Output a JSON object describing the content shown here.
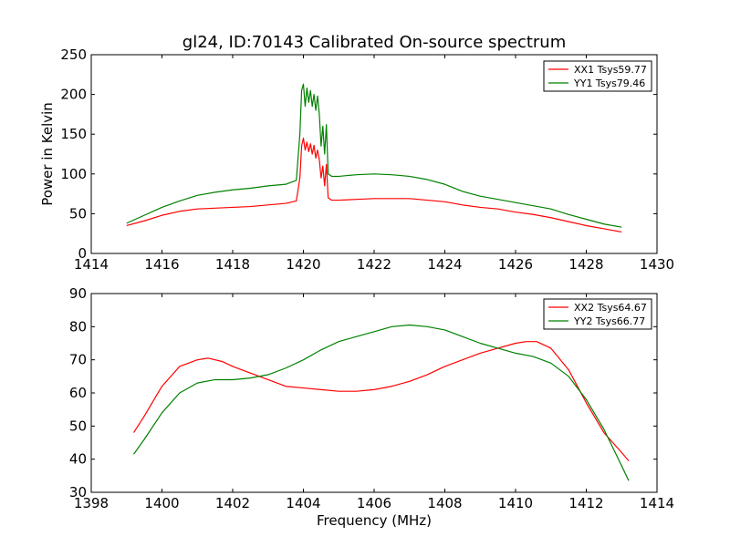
{
  "chart_data": [
    {
      "type": "line",
      "title": "gl24, ID:70143 Calibrated On-source spectrum",
      "ylabel": "Power in Kelvin",
      "xlabel": "",
      "xlim": [
        1414,
        1430
      ],
      "ylim": [
        0,
        250
      ],
      "xticks": [
        "1414",
        "1416",
        "1418",
        "1420",
        "1422",
        "1424",
        "1426",
        "1428",
        "1430"
      ],
      "yticks": [
        "0",
        "50",
        "100",
        "150",
        "200",
        "250"
      ],
      "grid": false,
      "legend": "top-right",
      "series": [
        {
          "name": "XX1 Tsys59.77",
          "color": "#ff0000",
          "x": [
            1415.0,
            1415.5,
            1416.0,
            1416.5,
            1417.0,
            1417.5,
            1418.0,
            1418.5,
            1419.0,
            1419.5,
            1419.8,
            1419.9,
            1419.95,
            1420.0,
            1420.05,
            1420.1,
            1420.15,
            1420.2,
            1420.25,
            1420.3,
            1420.35,
            1420.4,
            1420.45,
            1420.5,
            1420.55,
            1420.6,
            1420.65,
            1420.7,
            1420.8,
            1421.0,
            1421.5,
            1422.0,
            1422.5,
            1423.0,
            1423.5,
            1424.0,
            1424.5,
            1425.0,
            1425.5,
            1426.0,
            1426.5,
            1427.0,
            1427.5,
            1428.0,
            1428.5,
            1429.0
          ],
          "y": [
            35,
            41,
            48,
            53,
            56,
            57,
            58,
            59,
            61,
            63,
            66,
            95,
            135,
            145,
            130,
            140,
            128,
            138,
            125,
            136,
            120,
            130,
            118,
            95,
            110,
            85,
            112,
            70,
            67,
            67,
            68,
            69,
            69,
            69,
            67,
            65,
            61,
            58,
            56,
            52,
            49,
            45,
            40,
            35,
            31,
            27
          ]
        },
        {
          "name": "YY1 Tsys79.46",
          "color": "#008000",
          "x": [
            1415.0,
            1415.5,
            1416.0,
            1416.5,
            1417.0,
            1417.5,
            1418.0,
            1418.5,
            1419.0,
            1419.5,
            1419.8,
            1419.9,
            1419.95,
            1420.0,
            1420.05,
            1420.1,
            1420.15,
            1420.2,
            1420.25,
            1420.3,
            1420.35,
            1420.4,
            1420.45,
            1420.5,
            1420.55,
            1420.6,
            1420.65,
            1420.7,
            1420.8,
            1421.0,
            1421.5,
            1422.0,
            1422.5,
            1423.0,
            1423.5,
            1424.0,
            1424.5,
            1425.0,
            1425.5,
            1426.0,
            1426.5,
            1427.0,
            1427.5,
            1428.0,
            1428.5,
            1429.0
          ],
          "y": [
            38,
            48,
            58,
            66,
            73,
            77,
            80,
            82,
            85,
            87,
            92,
            150,
            205,
            213,
            185,
            208,
            190,
            205,
            185,
            200,
            180,
            198,
            175,
            135,
            160,
            125,
            162,
            100,
            97,
            97,
            99,
            100,
            99,
            97,
            93,
            87,
            78,
            72,
            68,
            64,
            60,
            56,
            49,
            43,
            37,
            33
          ]
        }
      ]
    },
    {
      "type": "line",
      "title": "",
      "ylabel": "",
      "xlabel": "Frequency (MHz)",
      "xlim": [
        1398,
        1414
      ],
      "ylim": [
        30,
        90
      ],
      "xticks": [
        "1398",
        "1400",
        "1402",
        "1404",
        "1406",
        "1408",
        "1410",
        "1412",
        "1414"
      ],
      "yticks": [
        "30",
        "40",
        "50",
        "60",
        "70",
        "80",
        "90"
      ],
      "grid": false,
      "legend": "top-right",
      "series": [
        {
          "name": "XX2 Tsys64.67",
          "color": "#ff0000",
          "x": [
            1399.2,
            1399.5,
            1400.0,
            1400.5,
            1401.0,
            1401.3,
            1401.7,
            1402.0,
            1402.5,
            1403.0,
            1403.5,
            1404.0,
            1404.5,
            1405.0,
            1405.5,
            1406.0,
            1406.5,
            1407.0,
            1407.5,
            1408.0,
            1408.5,
            1409.0,
            1409.5,
            1410.0,
            1410.3,
            1410.6,
            1411.0,
            1411.5,
            1412.0,
            1412.5,
            1413.0,
            1413.2
          ],
          "y": [
            48,
            53,
            62,
            68,
            70,
            70.5,
            69.5,
            68,
            66,
            64,
            62,
            61.5,
            61,
            60.5,
            60.5,
            61,
            62,
            63.5,
            65.5,
            68,
            70,
            72,
            73.5,
            75,
            75.5,
            75.5,
            73.5,
            67,
            57,
            48,
            42,
            39.5
          ]
        },
        {
          "name": "YY2 Tsys66.77",
          "color": "#008000",
          "x": [
            1399.2,
            1399.5,
            1400.0,
            1400.5,
            1401.0,
            1401.5,
            1402.0,
            1402.5,
            1403.0,
            1403.5,
            1404.0,
            1404.5,
            1405.0,
            1405.5,
            1406.0,
            1406.5,
            1407.0,
            1407.5,
            1408.0,
            1408.5,
            1409.0,
            1409.5,
            1410.0,
            1410.5,
            1411.0,
            1411.5,
            1412.0,
            1412.5,
            1413.0,
            1413.2
          ],
          "y": [
            41.5,
            46,
            54,
            60,
            63,
            64,
            64,
            64.5,
            65.5,
            67.5,
            70,
            73,
            75.5,
            77,
            78.5,
            80,
            80.5,
            80,
            79,
            77,
            75,
            73.5,
            72,
            71,
            69,
            65,
            58,
            49,
            38,
            33.5
          ]
        }
      ]
    }
  ]
}
